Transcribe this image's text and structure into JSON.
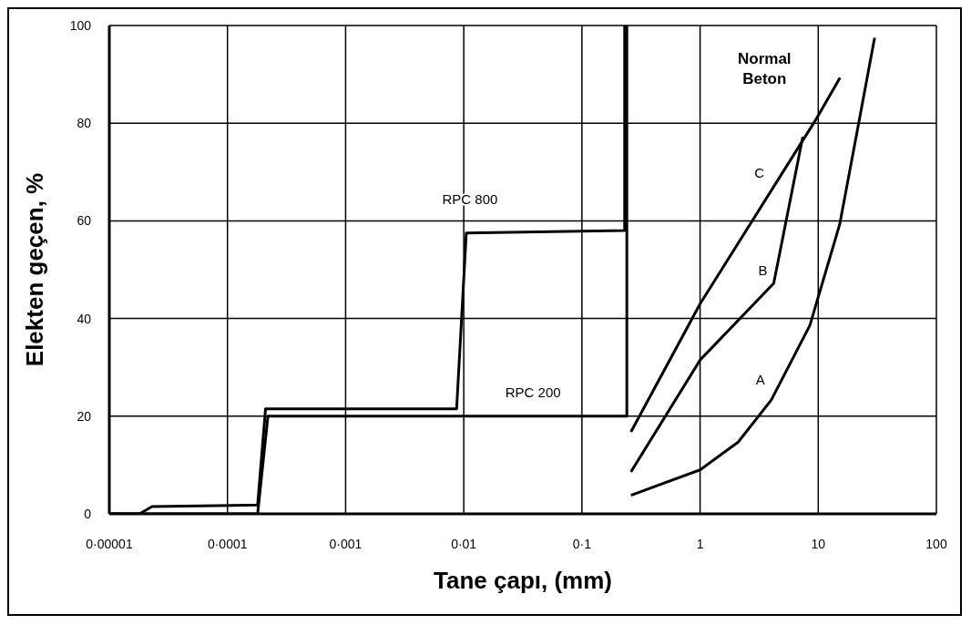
{
  "chart_data": {
    "type": "line",
    "xlabel": "Tane çapı, (mm)",
    "ylabel": "Elekten geçen, %",
    "xlim": [
      1e-05,
      100
    ],
    "log": "x",
    "xticks": [
      {
        "value": 1e-05,
        "label": "0·00001"
      },
      {
        "value": 0.0001,
        "label": "0·0001"
      },
      {
        "value": 0.001,
        "label": "0·001"
      },
      {
        "value": 0.01,
        "label": "0·01"
      },
      {
        "value": 0.1,
        "label": "0·1"
      },
      1,
      10,
      100
    ],
    "ylim": [
      0,
      100
    ],
    "yticks": [
      0,
      20,
      40,
      60,
      80,
      100
    ],
    "grid": true,
    "legend": false,
    "marker": "none",
    "line_style": "solid",
    "series": [
      {
        "name": "RPC 800",
        "color": "#000000",
        "x": [
          1e-05,
          1.8e-05,
          2.3e-05,
          0.00018,
          0.00021,
          0.0087,
          0.0105,
          0.23,
          0.23
        ],
        "values": [
          0,
          0,
          1.5,
          1.8,
          21.5,
          21.5,
          57.5,
          58,
          100
        ]
      },
      {
        "name": "RPC 200",
        "color": "#000000",
        "x": [
          1e-05,
          0.00018,
          0.00022,
          0.24,
          0.24
        ],
        "values": [
          0,
          0,
          20,
          20,
          100
        ]
      },
      {
        "name": "C",
        "color": "#000000",
        "x": [
          0.26,
          1.0,
          9.7,
          15.3
        ],
        "values": [
          16.8,
          43,
          81,
          89.3
        ]
      },
      {
        "name": "B",
        "color": "#000000",
        "x": [
          0.26,
          1.0,
          4.2,
          7.4
        ],
        "values": [
          8.6,
          31.5,
          47.2,
          77.2
        ]
      },
      {
        "name": "A",
        "color": "#000000",
        "x": [
          0.26,
          1.0,
          2.1,
          4.0,
          8.5,
          15.2,
          22.4,
          30
        ],
        "values": [
          3.8,
          9,
          14.7,
          23.3,
          38.6,
          59.3,
          81,
          97.5
        ]
      }
    ],
    "annotations": [
      "Normal\nBeton"
    ]
  }
}
